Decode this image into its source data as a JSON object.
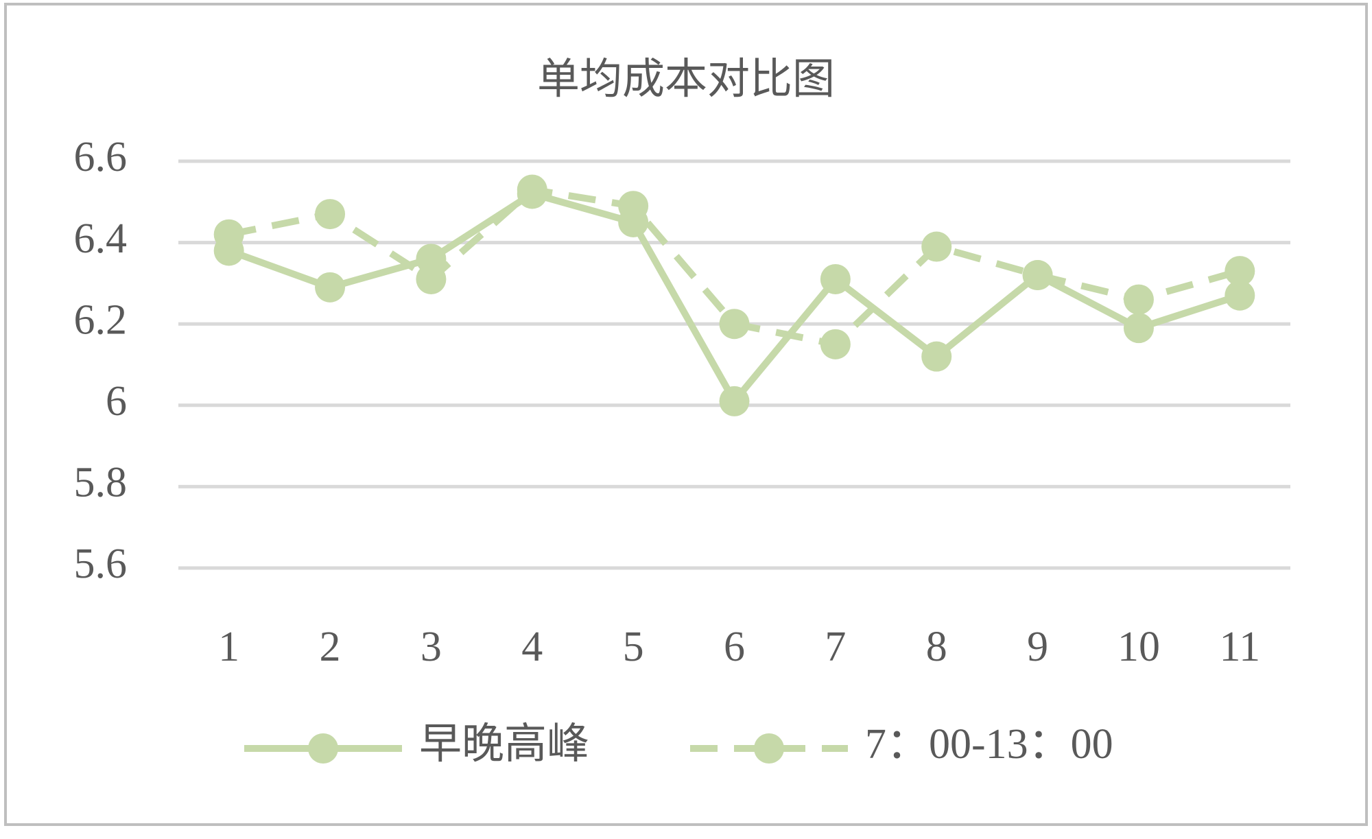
{
  "chart_data": {
    "type": "line",
    "title": "单均成本对比图",
    "categories": [
      "1",
      "2",
      "3",
      "4",
      "5",
      "6",
      "7",
      "8",
      "9",
      "10",
      "11"
    ],
    "series": [
      {
        "name": "早晚高峰",
        "color": "#c6d9a9",
        "dash": false,
        "values": [
          6.38,
          6.29,
          6.36,
          6.52,
          6.45,
          6.01,
          6.31,
          6.12,
          6.32,
          6.19,
          6.27
        ]
      },
      {
        "name": "7：00-13：00",
        "color": "#c6d9a9",
        "dash": true,
        "values": [
          6.42,
          6.47,
          6.31,
          6.53,
          6.49,
          6.2,
          6.15,
          6.39,
          6.32,
          6.26,
          6.33
        ]
      }
    ],
    "ylim": [
      5.6,
      6.6
    ],
    "yticks": [
      5.6,
      5.8,
      6,
      6.2,
      6.4,
      6.6
    ],
    "grid": true,
    "legend": "bottom"
  }
}
